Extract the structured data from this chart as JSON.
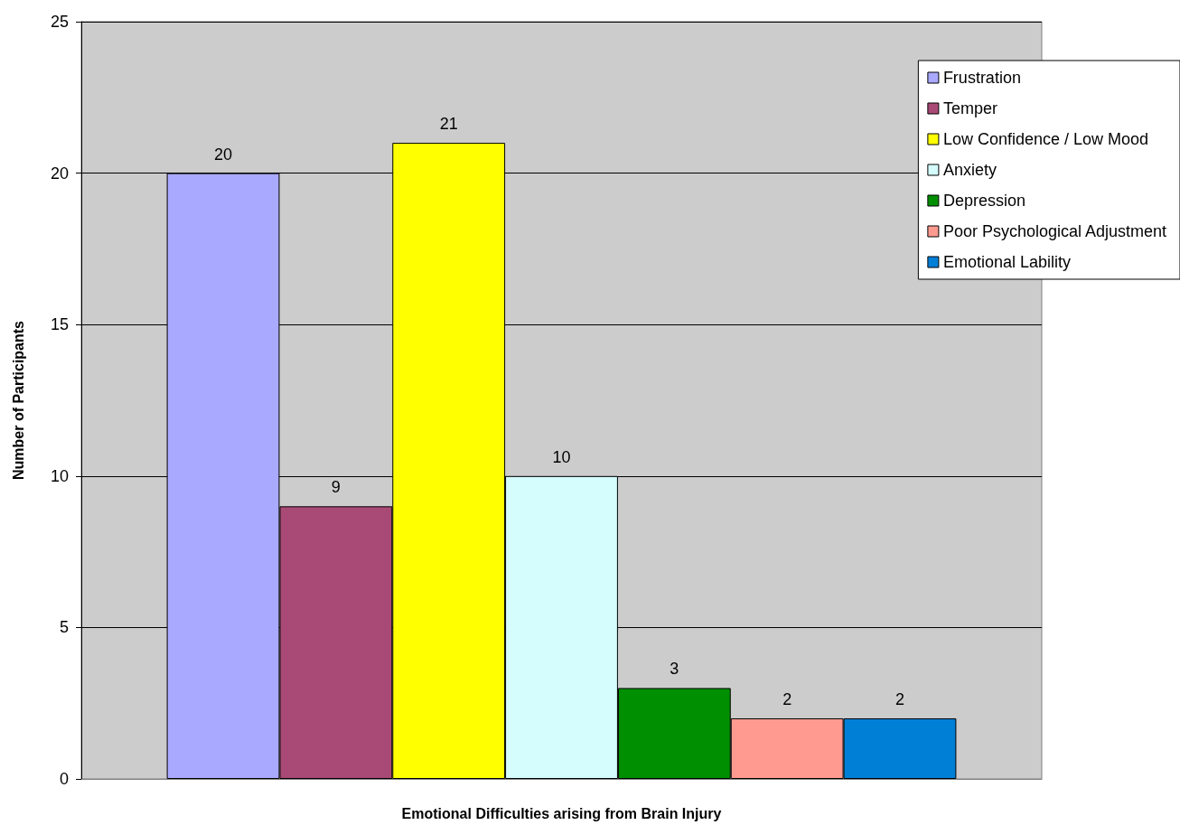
{
  "chart_data": {
    "type": "bar",
    "xlabel": "Emotional Difficulties arising from Brain Injury",
    "ylabel": "Number of Participants",
    "categories": [
      null
    ],
    "series": [
      {
        "name": "Frustration",
        "color": "#a9a9ff",
        "values": [
          20
        ]
      },
      {
        "name": "Temper",
        "color": "#a94975",
        "values": [
          9
        ]
      },
      {
        "name": "Low Confidence / Low Mood",
        "color": "#ffff00",
        "values": [
          21
        ]
      },
      {
        "name": "Anxiety",
        "color": "#d5fdfd",
        "values": [
          10
        ]
      },
      {
        "name": "Depression",
        "color": "#008f00",
        "values": [
          3
        ]
      },
      {
        "name": "Poor Psychological Adjustment",
        "color": "#ff9a90",
        "values": [
          2
        ]
      },
      {
        "name": "Emotional Lability",
        "color": "#007fd7",
        "values": [
          2
        ]
      }
    ],
    "ylim": [
      0,
      25
    ],
    "yticks": [
      0,
      5,
      10,
      15,
      20,
      25
    ],
    "grid": "y",
    "legend": "top right",
    "data_labels": true,
    "tick_labels": "y"
  }
}
